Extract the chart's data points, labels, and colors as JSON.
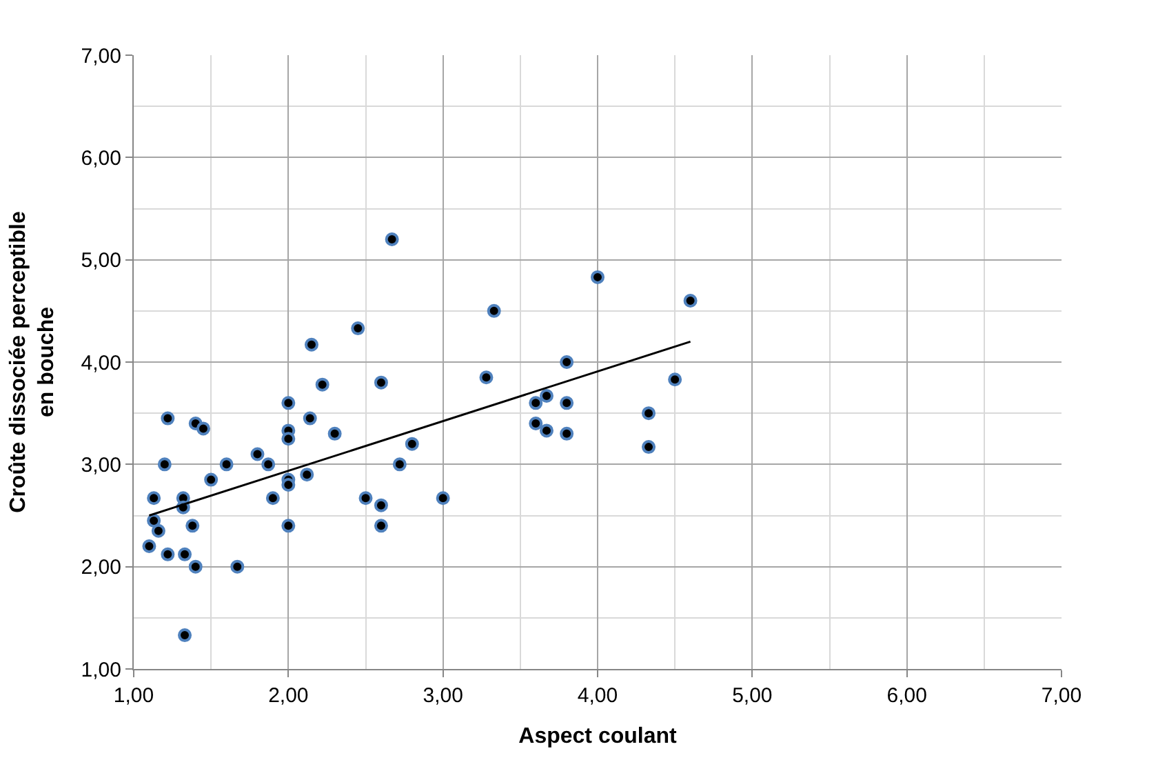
{
  "chart_data": {
    "type": "scatter",
    "xlabel": "Aspect coulant",
    "ylabel": "Croûte dissociée perceptible en bouche",
    "xlim": [
      1,
      7
    ],
    "ylim": [
      1,
      7
    ],
    "xticks": [
      {
        "value": 1,
        "label": "1,00"
      },
      {
        "value": 2,
        "label": "2,00"
      },
      {
        "value": 3,
        "label": "3,00"
      },
      {
        "value": 4,
        "label": "4,00"
      },
      {
        "value": 5,
        "label": "5,00"
      },
      {
        "value": 6,
        "label": "6,00"
      },
      {
        "value": 7,
        "label": "7,00"
      }
    ],
    "yticks": [
      {
        "value": 1,
        "label": "1,00"
      },
      {
        "value": 2,
        "label": "2,00"
      },
      {
        "value": 3,
        "label": "3,00"
      },
      {
        "value": 4,
        "label": "4,00"
      },
      {
        "value": 5,
        "label": "5,00"
      },
      {
        "value": 6,
        "label": "6,00"
      },
      {
        "value": 7,
        "label": "7,00"
      }
    ],
    "grid": true,
    "legend": false,
    "marker": "circle",
    "series": [
      {
        "color": "#000000",
        "x": [
          1.1,
          1.13,
          1.13,
          1.16,
          1.2,
          1.22,
          1.22,
          1.32,
          1.32,
          1.33,
          1.33,
          1.38,
          1.4,
          1.4,
          1.45,
          1.5,
          1.6,
          1.67,
          1.8,
          1.87,
          1.9,
          2.0,
          2.0,
          2.0,
          2.0,
          2.0,
          2.0,
          2.12,
          2.14,
          2.15,
          2.22,
          2.3,
          2.45,
          2.5,
          2.6,
          2.6,
          2.6,
          2.67,
          2.72,
          2.8,
          3.0,
          3.28,
          3.33,
          3.6,
          3.6,
          3.67,
          3.67,
          3.8,
          3.8,
          3.8,
          4.0,
          4.33,
          4.33,
          4.5,
          4.6
        ],
        "values": [
          2.2,
          2.67,
          2.45,
          2.35,
          3.0,
          3.45,
          2.12,
          2.67,
          2.58,
          2.12,
          1.33,
          2.4,
          2.0,
          3.4,
          3.35,
          2.85,
          3.0,
          2.0,
          3.1,
          3.0,
          2.67,
          3.6,
          3.33,
          3.25,
          2.85,
          2.8,
          2.4,
          2.9,
          3.45,
          4.17,
          3.78,
          3.3,
          4.33,
          2.67,
          3.8,
          2.6,
          2.4,
          5.2,
          3.0,
          3.2,
          2.67,
          3.85,
          4.5,
          3.6,
          3.4,
          3.67,
          3.33,
          4.0,
          3.6,
          3.3,
          4.83,
          3.5,
          3.17,
          3.83,
          4.6
        ]
      },
      {
        "type": "line",
        "color": "#000000",
        "marker": "none",
        "x": [
          1.1,
          4.6
        ],
        "values": [
          2.5,
          4.2
        ]
      }
    ]
  }
}
